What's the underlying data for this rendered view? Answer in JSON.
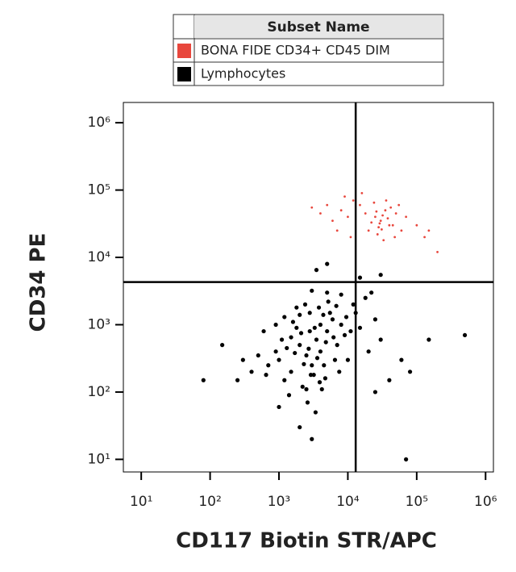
{
  "chart_data": {
    "type": "scatter",
    "legend_header": "Subset Name",
    "xlabel": "CD117 Biotin STR/APC",
    "ylabel": "CD34 PE",
    "xscale": "log",
    "yscale": "log",
    "xlim": [
      5.5,
      1300000
    ],
    "ylim": [
      6.5,
      2000000
    ],
    "xticks": [
      {
        "value": 10,
        "label": "10¹"
      },
      {
        "value": 100,
        "label": "10²"
      },
      {
        "value": 1000,
        "label": "10³"
      },
      {
        "value": 10000,
        "label": "10⁴"
      },
      {
        "value": 100000,
        "label": "10⁵"
      },
      {
        "value": 1000000,
        "label": "10⁶"
      }
    ],
    "yticks": [
      {
        "value": 10,
        "label": "10¹"
      },
      {
        "value": 100,
        "label": "10²"
      },
      {
        "value": 1000,
        "label": "10³"
      },
      {
        "value": 10000,
        "label": "10⁴"
      },
      {
        "value": 100000,
        "label": "10⁵"
      },
      {
        "value": 1000000,
        "label": "10⁶"
      }
    ],
    "gates": {
      "x": 13000,
      "y": 4300
    },
    "series": [
      {
        "name": "BONA FIDE CD34+ CD45 DIM",
        "color": "#e8473d",
        "x": [
          30000,
          25000,
          40000,
          35000,
          20000,
          50000,
          45000,
          15000,
          10000,
          8000,
          6000,
          5000,
          4000,
          3000,
          60000,
          70000,
          100000,
          130000,
          28000,
          32000,
          38000,
          22000,
          18000,
          12000,
          9000,
          42000,
          55000,
          27000,
          33000,
          48000,
          200000,
          150000,
          7000,
          11000,
          16000,
          24000,
          36000,
          26000,
          29000,
          31000
        ],
        "values": [
          35000,
          40000,
          30000,
          50000,
          25000,
          45000,
          30000,
          60000,
          40000,
          50000,
          35000,
          60000,
          45000,
          55000,
          25000,
          40000,
          30000,
          20000,
          28000,
          42000,
          38000,
          33000,
          45000,
          70000,
          80000,
          55000,
          60000,
          22000,
          18000,
          20000,
          12000,
          25000,
          25000,
          20000,
          90000,
          65000,
          70000,
          48000,
          32000,
          26000
        ]
      },
      {
        "name": "Lymphocytes",
        "color": "#000000",
        "x": [
          1000,
          1500,
          2000,
          2500,
          3000,
          3500,
          4000,
          5000,
          6000,
          1200,
          1800,
          2200,
          2800,
          3200,
          4500,
          7000,
          8000,
          900,
          700,
          1100,
          1600,
          2400,
          3800,
          5500,
          9000,
          12000,
          15000,
          20000,
          25000,
          30000,
          1400,
          2600,
          3400,
          2000,
          4200,
          650,
          500,
          400,
          300,
          250,
          80,
          150,
          6500,
          7500,
          10000,
          13000,
          18000,
          22000,
          3000,
          5000,
          8000,
          1800,
          2800,
          4000,
          1300,
          3600,
          2300,
          1700,
          4800,
          6200,
          60000,
          150000,
          500000,
          80000,
          40000,
          25000,
          3000,
          70000,
          1000,
          15000,
          3500,
          5000,
          30000,
          1200,
          600,
          900,
          2000,
          2700,
          3300,
          4400,
          5200,
          6800,
          9500,
          11000,
          1500,
          2100,
          2900,
          3900,
          4700,
          2500
        ],
        "values": [
          300,
          200,
          500,
          350,
          250,
          600,
          400,
          800,
          1200,
          150,
          900,
          120,
          1500,
          180,
          250,
          500,
          1000,
          400,
          250,
          600,
          1100,
          2000,
          1800,
          1500,
          700,
          2000,
          900,
          400,
          1200,
          600,
          90,
          70,
          50,
          30,
          110,
          180,
          350,
          200,
          300,
          150,
          150,
          500,
          300,
          200,
          300,
          1500,
          2500,
          3000,
          3200,
          3000,
          2800,
          1800,
          800,
          1000,
          450,
          320,
          260,
          380,
          550,
          650,
          300,
          600,
          700,
          200,
          150,
          100,
          20,
          10,
          60,
          5000,
          6500,
          8000,
          5500,
          1300,
          800,
          1000,
          1400,
          440,
          900,
          1400,
          2200,
          1900,
          1300,
          800,
          650,
          750,
          180,
          140,
          160,
          110
        ]
      }
    ]
  }
}
